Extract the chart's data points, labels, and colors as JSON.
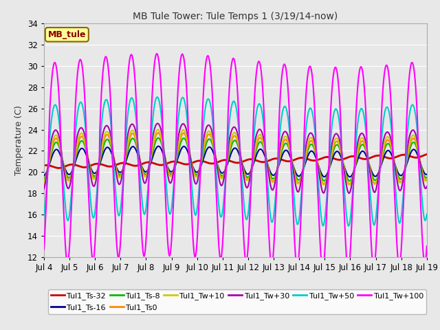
{
  "title": "MB Tule Tower: Tule Temps 1 (3/19/14-now)",
  "ylabel": "Temperature (C)",
  "ylim": [
    12,
    34
  ],
  "yticks": [
    12,
    14,
    16,
    18,
    20,
    22,
    24,
    26,
    28,
    30,
    32,
    34
  ],
  "xtick_labels": [
    "Jul 4",
    "Jul 5",
    "Jul 6",
    "Jul 7",
    "Jul 8",
    "Jul 9",
    "Jul 10",
    "Jul 11",
    "Jul 12",
    "Jul 13",
    "Jul 14",
    "Jul 15",
    "Jul 16",
    "Jul 17",
    "Jul 18",
    "Jul 19"
  ],
  "series": [
    {
      "label": "Tul1_Ts-32",
      "color": "#cc0000",
      "lw": 2.0
    },
    {
      "label": "Tul1_Ts-16",
      "color": "#000099",
      "lw": 1.5
    },
    {
      "label": "Tul1_Ts-8",
      "color": "#00bb00",
      "lw": 1.5
    },
    {
      "label": "Tul1_Ts0",
      "color": "#ff8800",
      "lw": 1.5
    },
    {
      "label": "Tul1_Tw+10",
      "color": "#cccc00",
      "lw": 1.5
    },
    {
      "label": "Tul1_Tw+30",
      "color": "#aa00aa",
      "lw": 1.5
    },
    {
      "label": "Tul1_Tw+50",
      "color": "#00cccc",
      "lw": 1.5
    },
    {
      "label": "Tul1_Tw+100",
      "color": "#ff00ff",
      "lw": 1.5
    }
  ],
  "bg_color": "#e8e8e8",
  "grid_color": "#ffffff",
  "legend_box_color": "#ffff99",
  "legend_box_edge": "#886600"
}
